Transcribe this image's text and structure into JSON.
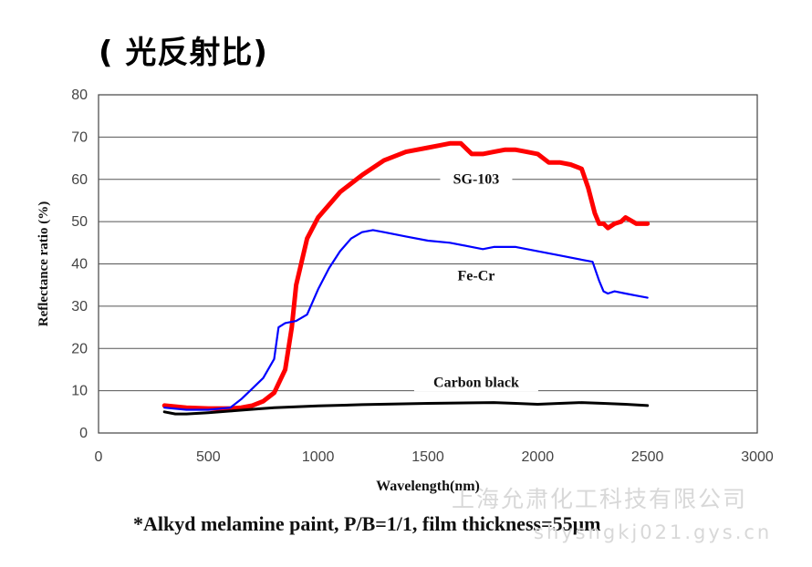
{
  "heading": "( 光反射比)",
  "footnote": "*Alkyd melamine paint, P/B=1/1, film thickness=55μm",
  "watermark": {
    "line1": "上海允肃化工科技有限公司",
    "line2": "shysngkj021.gys.cn"
  },
  "chart_data": {
    "type": "line",
    "xlabel": "Wavelength(nm)",
    "ylabel": "Reflectance ratio (%)",
    "xlim": [
      0,
      3000
    ],
    "ylim": [
      0,
      80
    ],
    "xticks": [
      0,
      500,
      1000,
      1500,
      2000,
      2500,
      3000
    ],
    "yticks": [
      0,
      10,
      20,
      30,
      40,
      50,
      60,
      70,
      80
    ],
    "grid": "horizontal",
    "series": [
      {
        "name": "SG-103",
        "color": "#ff0000",
        "x": [
          300,
          400,
          500,
          600,
          650,
          700,
          750,
          800,
          850,
          880,
          900,
          950,
          1000,
          1100,
          1200,
          1300,
          1400,
          1500,
          1550,
          1600,
          1650,
          1700,
          1750,
          1800,
          1850,
          1900,
          1950,
          2000,
          2050,
          2100,
          2150,
          2200,
          2230,
          2260,
          2280,
          2300,
          2320,
          2350,
          2380,
          2400,
          2450,
          2500
        ],
        "y": [
          6.5,
          6,
          5.8,
          5.8,
          6,
          6.5,
          7.5,
          9.5,
          15,
          25,
          35,
          46,
          51,
          57,
          61,
          64.5,
          66.5,
          67.5,
          68,
          68.5,
          68.5,
          66,
          66,
          66.5,
          67,
          67,
          66.5,
          66,
          64,
          64,
          63.5,
          62.5,
          58,
          52,
          49.5,
          49.5,
          48.5,
          49.5,
          50,
          51,
          49.5,
          49.5
        ]
      },
      {
        "name": "Fe-Cr",
        "color": "#0000ff",
        "x": [
          300,
          400,
          500,
          600,
          650,
          700,
          750,
          800,
          820,
          850,
          900,
          950,
          1000,
          1050,
          1100,
          1150,
          1200,
          1250,
          1300,
          1400,
          1500,
          1600,
          1700,
          1750,
          1800,
          1900,
          2000,
          2100,
          2200,
          2250,
          2280,
          2300,
          2320,
          2350,
          2400,
          2450,
          2500
        ],
        "y": [
          6,
          5.5,
          5.5,
          6,
          8,
          10.5,
          13,
          17.5,
          25,
          26,
          26.5,
          28,
          34,
          39,
          43,
          46,
          47.5,
          48,
          47.5,
          46.5,
          45.5,
          45,
          44,
          43.5,
          44,
          44,
          43,
          42,
          41,
          40.5,
          36,
          33.5,
          33,
          33.5,
          33,
          32.5,
          32
        ]
      },
      {
        "name": "Carbon black",
        "color": "#000000",
        "x": [
          300,
          350,
          400,
          500,
          600,
          700,
          800,
          1000,
          1200,
          1500,
          1800,
          1900,
          2000,
          2100,
          2200,
          2300,
          2400,
          2500
        ],
        "y": [
          5,
          4.5,
          4.5,
          4.8,
          5.2,
          5.6,
          6,
          6.4,
          6.7,
          7,
          7.2,
          7,
          6.8,
          7,
          7.2,
          7,
          6.8,
          6.5
        ]
      }
    ],
    "annotations": [
      {
        "text": "SG-103",
        "x": 1720,
        "y": 59.8
      },
      {
        "text": "Fe-Cr",
        "x": 1720,
        "y": 37
      },
      {
        "text": "Carbon black",
        "x": 1720,
        "y": 11.8
      }
    ]
  }
}
